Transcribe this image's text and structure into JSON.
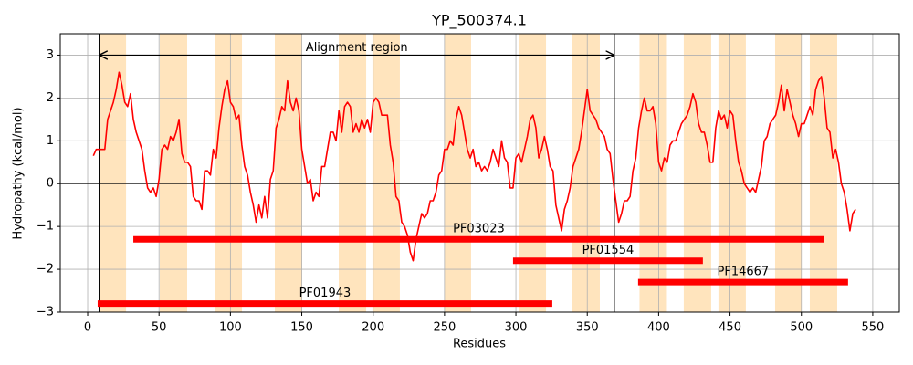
{
  "chart_data": {
    "type": "line",
    "title": "YP_500374.1",
    "xlabel": "Residues",
    "ylabel": "Hydropathy (kcal/mol)",
    "xlim": [
      -19.2,
      568.6
    ],
    "ylim": [
      -3,
      3.5
    ],
    "xticks": [
      0,
      50,
      100,
      150,
      200,
      250,
      300,
      350,
      400,
      450,
      500,
      550
    ],
    "yticks": [
      {
        "value": -3,
        "label": "−3"
      },
      {
        "value": -2,
        "label": "−2"
      },
      {
        "value": -1,
        "label": "−1"
      },
      0,
      1,
      2,
      3
    ],
    "grid": true,
    "zero_line": 0,
    "x": [
      4,
      6,
      8,
      10,
      12,
      14,
      16,
      18,
      20,
      22,
      24,
      26,
      28,
      30,
      32,
      34,
      36,
      38,
      40,
      42,
      44,
      46,
      48,
      50,
      52,
      54,
      56,
      58,
      60,
      62,
      64,
      66,
      68,
      70,
      72,
      74,
      76,
      78,
      80,
      82,
      84,
      86,
      88,
      90,
      92,
      94,
      96,
      98,
      100,
      102,
      104,
      106,
      108,
      110,
      112,
      114,
      116,
      118,
      120,
      122,
      124,
      126,
      128,
      130,
      132,
      134,
      136,
      138,
      140,
      142,
      144,
      146,
      148,
      150,
      152,
      154,
      156,
      158,
      160,
      162,
      164,
      166,
      168,
      170,
      172,
      174,
      176,
      178,
      180,
      182,
      184,
      186,
      188,
      190,
      192,
      194,
      196,
      198,
      200,
      202,
      204,
      206,
      208,
      210,
      212,
      214,
      216,
      218,
      220,
      222,
      224,
      226,
      228,
      230,
      232,
      234,
      236,
      238,
      240,
      242,
      244,
      246,
      248,
      250,
      252,
      254,
      256,
      258,
      260,
      262,
      264,
      266,
      268,
      270,
      272,
      274,
      276,
      278,
      280,
      282,
      284,
      286,
      288,
      290,
      292,
      294,
      296,
      298,
      300,
      302,
      304,
      306,
      308,
      310,
      312,
      314,
      316,
      318,
      320,
      322,
      324,
      326,
      328,
      330,
      332,
      334,
      336,
      338,
      340,
      342,
      344,
      346,
      348,
      350,
      352,
      354,
      356,
      358,
      360,
      362,
      364,
      366,
      368,
      370,
      372,
      374,
      376,
      378,
      380,
      382,
      384,
      386,
      388,
      390,
      392,
      394,
      396,
      398,
      400,
      402,
      404,
      406,
      408,
      410,
      412,
      414,
      416,
      418,
      420,
      422,
      424,
      426,
      428,
      430,
      432,
      434,
      436,
      438,
      440,
      442,
      444,
      446,
      448,
      450,
      452,
      454,
      456,
      458,
      460,
      462,
      464,
      466,
      468,
      470,
      472,
      474,
      476,
      478,
      480,
      482,
      484,
      486,
      488,
      490,
      492,
      494,
      496,
      498,
      500,
      502,
      504,
      506,
      508,
      510,
      512,
      514,
      516,
      518,
      520,
      522,
      524,
      526,
      528,
      530,
      532,
      534,
      536,
      538
    ],
    "series": [
      {
        "color": "#ff0000",
        "values": [
          0.65,
          0.8,
          0.8,
          0.8,
          0.8,
          1.5,
          1.7,
          1.9,
          2.2,
          2.6,
          2.3,
          1.9,
          1.8,
          2.1,
          1.5,
          1.2,
          1.0,
          0.8,
          0.3,
          -0.1,
          -0.2,
          -0.1,
          -0.3,
          0.1,
          0.8,
          0.9,
          0.8,
          1.1,
          1.0,
          1.2,
          1.5,
          0.7,
          0.5,
          0.5,
          0.4,
          -0.3,
          -0.4,
          -0.4,
          -0.6,
          0.3,
          0.3,
          0.2,
          0.8,
          0.6,
          1.3,
          1.8,
          2.2,
          2.4,
          1.9,
          1.8,
          1.5,
          1.6,
          0.9,
          0.4,
          0.2,
          -0.2,
          -0.5,
          -0.9,
          -0.5,
          -0.8,
          -0.3,
          -0.8,
          0.1,
          0.3,
          1.3,
          1.5,
          1.8,
          1.7,
          2.4,
          1.9,
          1.7,
          2.0,
          1.7,
          0.8,
          0.4,
          0.0,
          0.1,
          -0.4,
          -0.2,
          -0.3,
          0.4,
          0.4,
          0.8,
          1.2,
          1.2,
          1.0,
          1.7,
          1.2,
          1.8,
          1.9,
          1.8,
          1.2,
          1.4,
          1.2,
          1.5,
          1.3,
          1.5,
          1.2,
          1.9,
          2.0,
          1.9,
          1.6,
          1.6,
          1.6,
          0.9,
          0.5,
          -0.3,
          -0.4,
          -0.9,
          -1.0,
          -1.2,
          -1.6,
          -1.8,
          -1.3,
          -1.0,
          -0.7,
          -0.8,
          -0.7,
          -0.4,
          -0.4,
          -0.2,
          0.2,
          0.3,
          0.8,
          0.8,
          1.0,
          0.9,
          1.5,
          1.8,
          1.6,
          1.2,
          0.8,
          0.6,
          0.8,
          0.4,
          0.5,
          0.3,
          0.4,
          0.3,
          0.5,
          0.8,
          0.6,
          0.4,
          1.0,
          0.6,
          0.5,
          -0.1,
          -0.1,
          0.6,
          0.7,
          0.5,
          0.8,
          1.1,
          1.5,
          1.6,
          1.3,
          0.6,
          0.8,
          1.1,
          0.8,
          0.4,
          0.3,
          -0.5,
          -0.8,
          -1.1,
          -0.6,
          -0.4,
          -0.1,
          0.4,
          0.6,
          0.8,
          1.2,
          1.7,
          2.2,
          1.7,
          1.6,
          1.5,
          1.3,
          1.2,
          1.1,
          0.8,
          0.7,
          0.1,
          -0.4,
          -0.9,
          -0.7,
          -0.4,
          -0.4,
          -0.3,
          0.3,
          0.6,
          1.3,
          1.7,
          2.0,
          1.7,
          1.7,
          1.8,
          1.4,
          0.5,
          0.3,
          0.6,
          0.5,
          0.9,
          1.0,
          1.0,
          1.2,
          1.4,
          1.5,
          1.6,
          1.8,
          2.1,
          1.9,
          1.4,
          1.2,
          1.2,
          0.9,
          0.5,
          0.5,
          1.3,
          1.7,
          1.5,
          1.6,
          1.3,
          1.7,
          1.6,
          1.0,
          0.5,
          0.3,
          0.0,
          -0.1,
          -0.2,
          -0.1,
          -0.2,
          0.1,
          0.4,
          1.0,
          1.1,
          1.4,
          1.5,
          1.6,
          1.9,
          2.3,
          1.7,
          2.2,
          1.9,
          1.6,
          1.4,
          1.1,
          1.4,
          1.4,
          1.6,
          1.8,
          1.6,
          2.2,
          2.4,
          2.5,
          2.0,
          1.3,
          1.2,
          0.6,
          0.8,
          0.5,
          0.0,
          -0.2,
          -0.6,
          -1.1,
          -0.7,
          -0.6
        ]
      }
    ],
    "regions_color": "#ffe4bd",
    "regions": [
      [
        8.3,
        26.9
      ],
      [
        50.5,
        69.7
      ],
      [
        88.9,
        108.1
      ],
      [
        131.1,
        150.3
      ],
      [
        175.9,
        195.1
      ],
      [
        199.5,
        218.7
      ],
      [
        250.1,
        268.6
      ],
      [
        301.9,
        321.1
      ],
      [
        339.6,
        358.8
      ],
      [
        386.6,
        405.8
      ],
      [
        417.6,
        436.8
      ],
      [
        441.9,
        461.1
      ],
      [
        481.6,
        500.1
      ],
      [
        505.9,
        525.1
      ]
    ],
    "alignment_region": {
      "label": "Alignment region",
      "start": 8,
      "end": 369,
      "y": 3
    },
    "domains": [
      {
        "name": "PF03023",
        "start": 32,
        "end": 516,
        "y": -1.3
      },
      {
        "name": "PF01554",
        "start": 298,
        "end": 431,
        "y": -1.8
      },
      {
        "name": "PF14667",
        "start": 385.6,
        "end": 532.7,
        "y": -2.3
      },
      {
        "name": "PF01943",
        "start": 7,
        "end": 325.5,
        "y": -2.8
      }
    ],
    "domain_color": "#ff0000"
  }
}
